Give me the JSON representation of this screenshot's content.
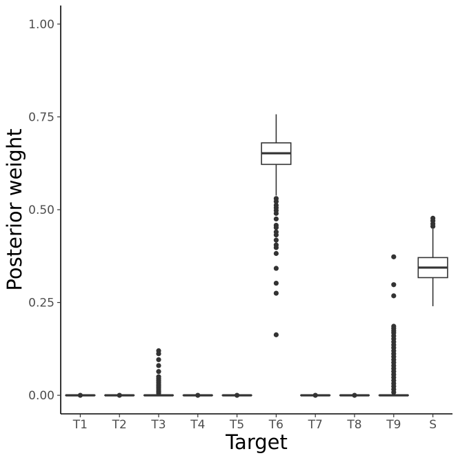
{
  "chart_data": {
    "type": "boxplot",
    "xlabel": "Target",
    "ylabel": "Posterior weight",
    "ylim": [
      -0.05,
      1.05
    ],
    "yticks": [
      0.0,
      0.25,
      0.5,
      0.75,
      1.0
    ],
    "ytick_labels": [
      "0.00",
      "0.25",
      "0.50",
      "0.75",
      "1.00"
    ],
    "grid": false,
    "categories": [
      "T1",
      "T2",
      "T3",
      "T4",
      "T5",
      "T6",
      "T7",
      "T8",
      "T9",
      "S"
    ],
    "boxes": [
      {
        "category": "T1",
        "q1": 0.0,
        "median": 0.0,
        "q3": 0.0,
        "whisker_low": 0.0,
        "whisker_high": 0.0,
        "outliers": [
          0.0
        ]
      },
      {
        "category": "T2",
        "q1": 0.0,
        "median": 0.0,
        "q3": 0.0,
        "whisker_low": 0.0,
        "whisker_high": 0.0,
        "outliers": [
          0.0
        ]
      },
      {
        "category": "T3",
        "q1": 0.0,
        "median": 0.0,
        "q3": 0.0,
        "whisker_low": 0.0,
        "whisker_high": 0.0,
        "outliers": [
          0.12,
          0.112,
          0.096,
          0.08,
          0.064,
          0.05,
          0.045,
          0.04,
          0.035,
          0.03,
          0.025,
          0.02,
          0.015,
          0.01,
          0.006
        ]
      },
      {
        "category": "T4",
        "q1": 0.0,
        "median": 0.0,
        "q3": 0.0,
        "whisker_low": 0.0,
        "whisker_high": 0.0,
        "outliers": [
          0.0
        ]
      },
      {
        "category": "T5",
        "q1": 0.0,
        "median": 0.0,
        "q3": 0.0,
        "whisker_low": 0.0,
        "whisker_high": 0.0,
        "outliers": [
          0.0
        ]
      },
      {
        "category": "T6",
        "q1": 0.622,
        "median": 0.652,
        "q3": 0.68,
        "whisker_low": 0.538,
        "whisker_high": 0.757,
        "outliers": [
          0.53,
          0.522,
          0.512,
          0.505,
          0.498,
          0.49,
          0.475,
          0.458,
          0.452,
          0.44,
          0.432,
          0.418,
          0.405,
          0.398,
          0.382,
          0.342,
          0.302,
          0.275,
          0.163
        ]
      },
      {
        "category": "T7",
        "q1": 0.0,
        "median": 0.0,
        "q3": 0.0,
        "whisker_low": 0.0,
        "whisker_high": 0.0,
        "outliers": [
          0.0
        ]
      },
      {
        "category": "T8",
        "q1": 0.0,
        "median": 0.0,
        "q3": 0.0,
        "whisker_low": 0.0,
        "whisker_high": 0.0,
        "outliers": [
          0.0
        ]
      },
      {
        "category": "T9",
        "q1": 0.0,
        "median": 0.0,
        "q3": 0.0,
        "whisker_low": 0.0,
        "whisker_high": 0.0,
        "outliers": [
          0.373,
          0.298,
          0.268,
          0.186,
          0.18,
          0.174,
          0.168,
          0.16,
          0.152,
          0.144,
          0.136,
          0.128,
          0.12,
          0.112,
          0.104,
          0.096,
          0.088,
          0.08,
          0.072,
          0.064,
          0.056,
          0.048,
          0.04,
          0.032,
          0.024,
          0.016,
          0.008
        ]
      },
      {
        "category": "S",
        "q1": 0.317,
        "median": 0.344,
        "q3": 0.371,
        "whisker_low": 0.24,
        "whisker_high": 0.448,
        "outliers": [
          0.455,
          0.462,
          0.47,
          0.477
        ]
      }
    ]
  }
}
